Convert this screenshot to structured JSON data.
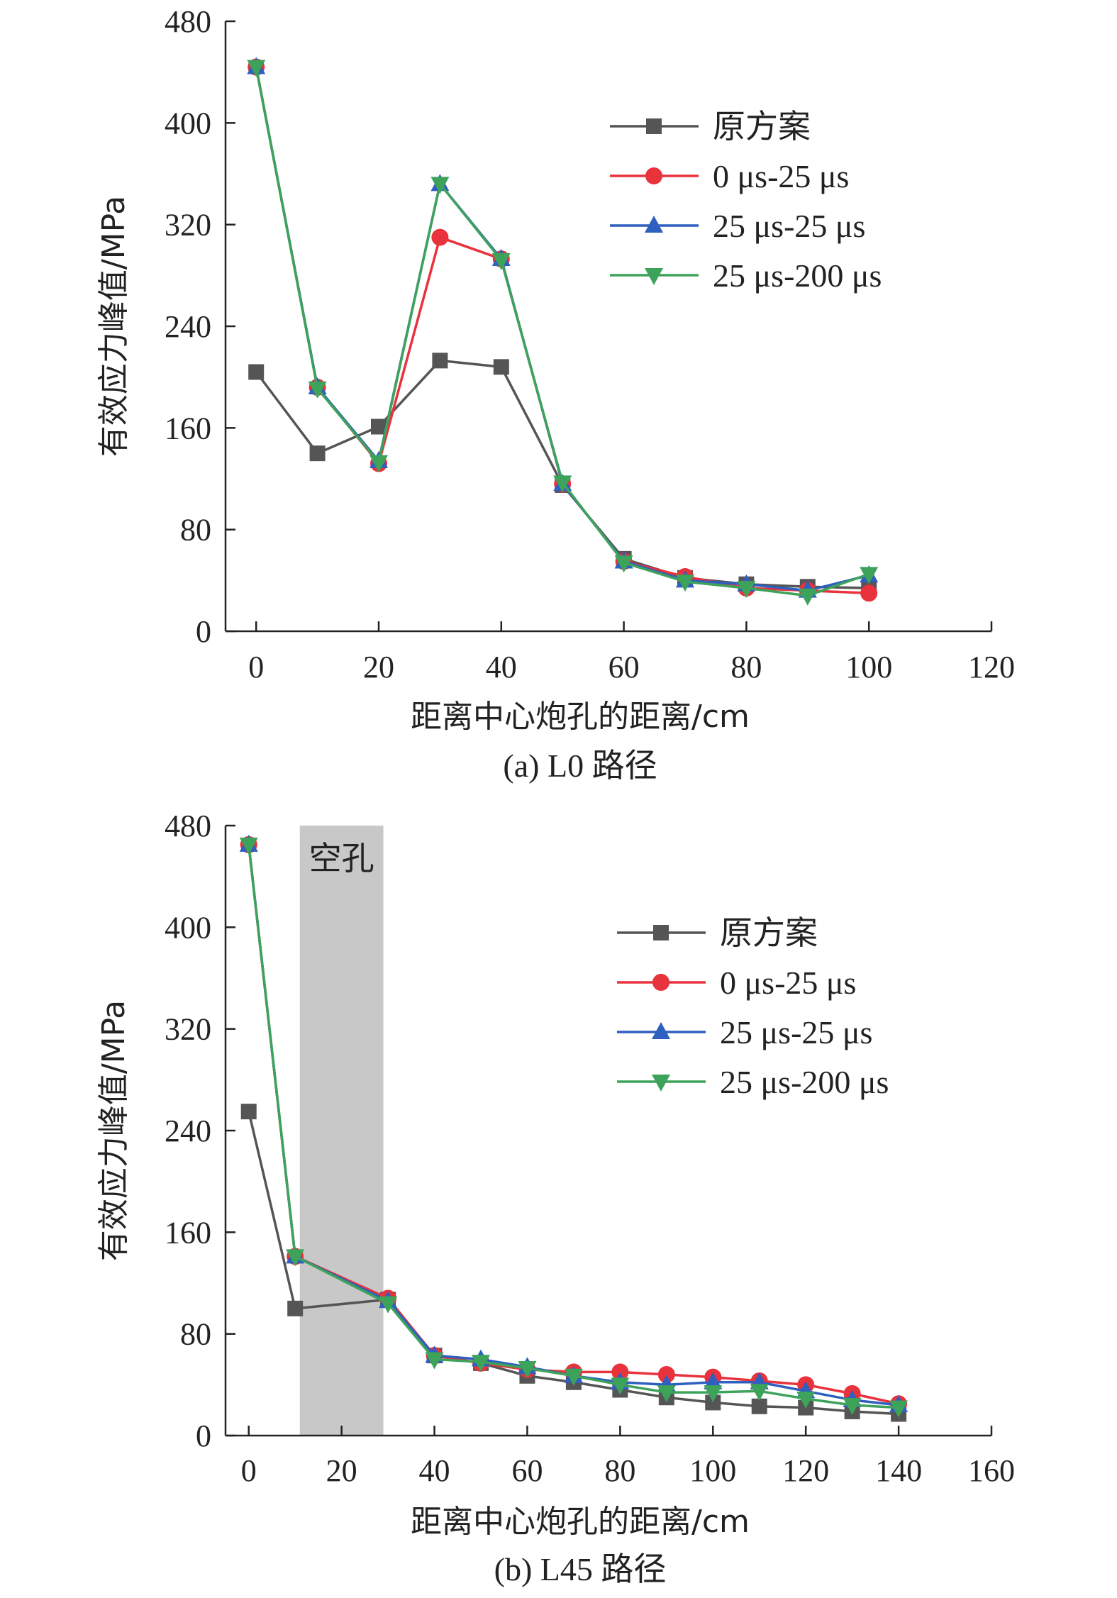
{
  "chart_data": [
    {
      "type": "line",
      "caption": "(a) L0 路径",
      "xlabel": "距离中心炮孔的距离/cm",
      "ylabel": "有效应力峰值/MPa",
      "xlim": [
        -5,
        120
      ],
      "ylim": [
        0,
        480
      ],
      "xticks": [
        0,
        20,
        40,
        60,
        80,
        100,
        120
      ],
      "yticks": [
        0,
        80,
        160,
        240,
        320,
        400,
        480
      ],
      "legend_position": "top-right",
      "grid": false,
      "x": [
        0,
        10,
        20,
        30,
        40,
        50,
        60,
        70,
        80,
        90,
        100
      ],
      "series": [
        {
          "name": "原方案",
          "color": "#555555",
          "marker": "square",
          "values": [
            204,
            140,
            161,
            213,
            208,
            115,
            57,
            42,
            37,
            35,
            34
          ]
        },
        {
          "name": "0 μs-25 μs",
          "color": "#e8323c",
          "marker": "circle",
          "values": [
            444,
            192,
            132,
            310,
            293,
            116,
            55,
            43,
            34,
            32,
            30
          ]
        },
        {
          "name": "25 μs-25 μs",
          "color": "#2f5fbf",
          "marker": "triangle-up",
          "values": [
            444,
            192,
            134,
            352,
            293,
            116,
            55,
            40,
            37,
            32,
            44
          ]
        },
        {
          "name": "25 μs-200 μs",
          "color": "#3da35a",
          "marker": "triangle-down",
          "values": [
            444,
            191,
            133,
            352,
            292,
            117,
            54,
            39,
            34,
            28,
            45
          ]
        }
      ]
    },
    {
      "type": "line",
      "caption": "(b) L45 路径",
      "xlabel": "距离中心炮孔的距离/cm",
      "ylabel": "有效应力峰值/MPa",
      "xlim": [
        -5,
        160
      ],
      "ylim": [
        0,
        480
      ],
      "xticks": [
        0,
        20,
        40,
        60,
        80,
        100,
        120,
        140,
        160
      ],
      "yticks": [
        0,
        80,
        160,
        240,
        320,
        400,
        480
      ],
      "legend_position": "top-right",
      "grid": false,
      "shaded_region": {
        "label": "空孔",
        "x_range": [
          11,
          29
        ],
        "color": "#c8c8c8"
      },
      "series": [
        {
          "name": "原方案",
          "color": "#555555",
          "marker": "square",
          "x": [
            0,
            10,
            30,
            40,
            50,
            60,
            70,
            80,
            90,
            100,
            110,
            120,
            130,
            140
          ],
          "values": [
            255,
            100,
            107,
            63,
            57,
            47,
            42,
            36,
            30,
            26,
            23,
            22,
            19,
            17
          ]
        },
        {
          "name": "0 μs-25 μs",
          "color": "#e8323c",
          "marker": "circle",
          "x": [
            0,
            10,
            30,
            40,
            50,
            60,
            70,
            80,
            90,
            100,
            110,
            120,
            130,
            140
          ],
          "values": [
            465,
            141,
            108,
            63,
            57,
            52,
            50,
            50,
            48,
            46,
            43,
            40,
            33,
            25
          ]
        },
        {
          "name": "25 μs-25 μs",
          "color": "#2f5fbf",
          "marker": "triangle-up",
          "x": [
            0,
            10,
            30,
            40,
            50,
            60,
            70,
            80,
            90,
            100,
            110,
            120,
            130,
            140
          ],
          "values": [
            465,
            141,
            106,
            63,
            60,
            54,
            47,
            42,
            40,
            42,
            42,
            35,
            28,
            24
          ]
        },
        {
          "name": "25 μs-200 μs",
          "color": "#3da35a",
          "marker": "triangle-down",
          "x": [
            0,
            10,
            30,
            40,
            50,
            60,
            70,
            80,
            90,
            100,
            110,
            120,
            130,
            140
          ],
          "values": [
            465,
            141,
            104,
            60,
            58,
            53,
            47,
            40,
            34,
            34,
            35,
            29,
            24,
            22
          ]
        }
      ]
    }
  ]
}
